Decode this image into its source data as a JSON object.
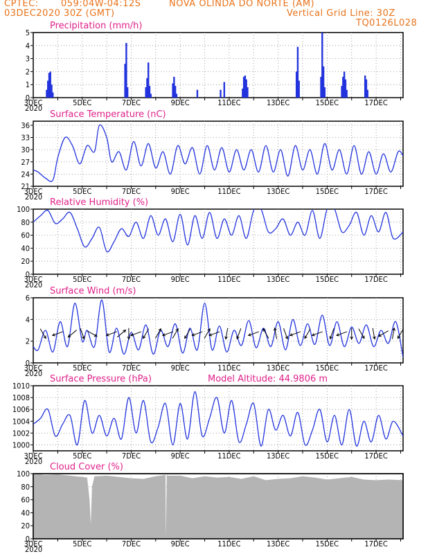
{
  "header": {
    "source": "CPTEC:",
    "coords": "059:04W-04:12S",
    "location": "NOVA OLINDA DO NORTE (AM)",
    "datetime": "03DEC2020 30Z (GMT)",
    "grid_line": "Vertical Grid Line: 30Z",
    "model": "TQ0126L028"
  },
  "x_axis": {
    "start_label": "3DEC",
    "year_label": "2020",
    "day_labels": [
      "3DEC",
      "5DEC",
      "7DEC",
      "9DEC",
      "11DEC",
      "13DEC",
      "15DEC",
      "17DEC"
    ],
    "day_values": [
      3,
      5,
      7,
      9,
      11,
      13,
      15,
      17
    ],
    "range_days": [
      3,
      18.1
    ]
  },
  "colors": {
    "series": "#2233dd",
    "grid": "#888888",
    "title": "#e0208a",
    "header": "#e8731a",
    "cloud": "#b4b4b4",
    "arrow": "#000000"
  },
  "chart_data": [
    {
      "type": "bar",
      "title": "Precipitation (mm/h)",
      "ylim": [
        0,
        5
      ],
      "yticks": [
        0,
        1,
        2,
        3,
        4,
        5
      ],
      "bars": [
        [
          3.55,
          0.6
        ],
        [
          3.6,
          1.3
        ],
        [
          3.65,
          1.9
        ],
        [
          3.7,
          2.0
        ],
        [
          3.75,
          1.0
        ],
        [
          3.8,
          0.4
        ],
        [
          6.75,
          2.6
        ],
        [
          6.8,
          4.2
        ],
        [
          6.85,
          0.8
        ],
        [
          7.6,
          0.8
        ],
        [
          7.65,
          1.5
        ],
        [
          7.7,
          2.7
        ],
        [
          7.75,
          0.9
        ],
        [
          7.8,
          0.3
        ],
        [
          8.7,
          1.1
        ],
        [
          8.75,
          1.6
        ],
        [
          8.8,
          0.9
        ],
        [
          8.85,
          0.3
        ],
        [
          9.7,
          0.6
        ],
        [
          10.65,
          0.6
        ],
        [
          10.8,
          1.2
        ],
        [
          11.55,
          0.7
        ],
        [
          11.6,
          1.6
        ],
        [
          11.65,
          1.7
        ],
        [
          11.7,
          1.4
        ],
        [
          11.75,
          0.8
        ],
        [
          13.75,
          2.0
        ],
        [
          13.8,
          3.9
        ],
        [
          13.85,
          1.3
        ],
        [
          14.75,
          1.6
        ],
        [
          14.8,
          5.0
        ],
        [
          14.85,
          2.4
        ],
        [
          14.9,
          0.8
        ],
        [
          15.6,
          0.9
        ],
        [
          15.65,
          1.6
        ],
        [
          15.7,
          2.0
        ],
        [
          15.75,
          1.4
        ],
        [
          15.8,
          0.6
        ],
        [
          16.55,
          1.7
        ],
        [
          16.6,
          1.4
        ],
        [
          16.65,
          0.6
        ]
      ]
    },
    {
      "type": "line",
      "title": "Surface Temperature (nC)",
      "ylim": [
        21,
        37
      ],
      "yticks": [
        21,
        24,
        27,
        30,
        33,
        36
      ],
      "x": [
        3.0,
        3.2,
        3.5,
        3.8,
        4.0,
        4.3,
        4.6,
        4.9,
        5.2,
        5.5,
        5.7,
        6.0,
        6.2,
        6.5,
        6.8,
        7.1,
        7.4,
        7.7,
        8.0,
        8.3,
        8.6,
        8.9,
        9.2,
        9.5,
        9.8,
        10.1,
        10.4,
        10.7,
        11.0,
        11.3,
        11.6,
        11.9,
        12.2,
        12.5,
        12.8,
        13.1,
        13.4,
        13.7,
        14.0,
        14.3,
        14.6,
        14.9,
        15.2,
        15.5,
        15.8,
        16.1,
        16.4,
        16.7,
        17.0,
        17.3,
        17.6,
        17.9,
        18.1
      ],
      "y": [
        25,
        24.5,
        23,
        22.5,
        28,
        33,
        31,
        26.5,
        31,
        29.5,
        36,
        33,
        27,
        29.5,
        25,
        32,
        26,
        31.5,
        25.5,
        29.5,
        24,
        31,
        26.5,
        30.5,
        24,
        31,
        25,
        30.5,
        24.5,
        30,
        25,
        30,
        24.5,
        31,
        24.5,
        30,
        23.5,
        31,
        25,
        30,
        24,
        31.5,
        25,
        30,
        24,
        31,
        24,
        29.5,
        24,
        29,
        24.5,
        29.5,
        28.5
      ]
    },
    {
      "type": "line",
      "title": "Relative Humidity (%)",
      "ylim": [
        0,
        100
      ],
      "yticks": [
        0,
        20,
        40,
        60,
        80,
        100
      ],
      "x": [
        3.0,
        3.3,
        3.6,
        3.9,
        4.2,
        4.5,
        4.8,
        5.1,
        5.4,
        5.7,
        6.0,
        6.3,
        6.6,
        6.9,
        7.2,
        7.5,
        7.8,
        8.1,
        8.4,
        8.7,
        9.0,
        9.3,
        9.6,
        9.9,
        10.2,
        10.5,
        10.8,
        11.1,
        11.4,
        11.7,
        12.0,
        12.3,
        12.6,
        12.9,
        13.2,
        13.5,
        13.8,
        14.1,
        14.4,
        14.7,
        15.0,
        15.3,
        15.6,
        15.9,
        16.2,
        16.5,
        16.8,
        17.1,
        17.4,
        17.7,
        18.1
      ],
      "y": [
        80,
        90,
        98,
        78,
        85,
        95,
        70,
        42,
        55,
        72,
        35,
        50,
        70,
        58,
        80,
        55,
        90,
        60,
        85,
        50,
        92,
        45,
        90,
        55,
        95,
        55,
        85,
        60,
        90,
        55,
        98,
        100,
        65,
        70,
        85,
        60,
        80,
        60,
        98,
        55,
        100,
        100,
        65,
        75,
        95,
        60,
        90,
        65,
        95,
        55,
        65
      ]
    },
    {
      "type": "line",
      "title": "Surface Wind (m/s)",
      "ylim": [
        0,
        6
      ],
      "yticks": [
        0,
        2,
        4,
        6
      ],
      "x": [
        3.0,
        3.2,
        3.5,
        3.8,
        4.1,
        4.4,
        4.7,
        5.0,
        5.2,
        5.5,
        5.8,
        6.1,
        6.4,
        6.7,
        7.0,
        7.3,
        7.6,
        7.9,
        8.2,
        8.5,
        8.8,
        9.1,
        9.4,
        9.7,
        10.0,
        10.3,
        10.6,
        10.9,
        11.2,
        11.5,
        11.8,
        12.1,
        12.4,
        12.7,
        13.0,
        13.3,
        13.6,
        13.9,
        14.2,
        14.5,
        14.8,
        15.1,
        15.4,
        15.7,
        16.0,
        16.3,
        16.6,
        16.9,
        17.2,
        17.5,
        17.8,
        18.1
      ],
      "y": [
        1.5,
        1.2,
        3.0,
        1.0,
        3.8,
        1.5,
        5.5,
        2.0,
        3.0,
        1.5,
        5.8,
        1.0,
        3.2,
        0.8,
        2.8,
        1.2,
        3.5,
        0.8,
        3.0,
        1.5,
        3.6,
        0.9,
        3.2,
        1.2,
        5.5,
        1.2,
        3.4,
        1.0,
        3.0,
        1.6,
        3.9,
        1.4,
        3.2,
        1.5,
        3.8,
        1.2,
        4.0,
        1.6,
        3.6,
        1.7,
        4.4,
        1.6,
        3.8,
        1.5,
        3.3,
        1.8,
        3.5,
        1.5,
        3.0,
        1.8,
        3.8,
        0.5
      ],
      "arrows": [
        [
          3.4,
          300
        ],
        [
          4.0,
          200
        ],
        [
          4.6,
          220
        ],
        [
          5.0,
          290
        ],
        [
          5.4,
          330
        ],
        [
          6.2,
          200
        ],
        [
          6.6,
          40
        ],
        [
          6.9,
          270
        ],
        [
          7.2,
          200
        ],
        [
          7.6,
          240
        ],
        [
          8.1,
          60
        ],
        [
          8.5,
          200
        ],
        [
          8.8,
          60
        ],
        [
          9.3,
          240
        ],
        [
          9.7,
          200
        ],
        [
          10.1,
          60
        ],
        [
          10.4,
          200
        ],
        [
          10.9,
          260
        ],
        [
          11.4,
          250
        ],
        [
          12.0,
          200
        ],
        [
          12.5,
          120
        ],
        [
          12.9,
          100
        ],
        [
          13.3,
          290
        ],
        [
          13.7,
          200
        ],
        [
          14.2,
          240
        ],
        [
          14.6,
          200
        ],
        [
          15.2,
          250
        ],
        [
          15.6,
          200
        ],
        [
          16.0,
          270
        ],
        [
          16.4,
          300
        ],
        [
          16.9,
          280
        ],
        [
          17.3,
          210
        ],
        [
          17.7,
          80
        ],
        [
          18.0,
          240
        ]
      ]
    },
    {
      "type": "line",
      "title": "Surface Pressure (hPa)",
      "annotation": "Model Altitude: 44.9806 m",
      "ylim": [
        999,
        1010
      ],
      "yticks": [
        1000,
        1002,
        1004,
        1006,
        1008,
        1010
      ],
      "x": [
        3.0,
        3.3,
        3.6,
        3.9,
        4.2,
        4.5,
        4.8,
        5.1,
        5.4,
        5.7,
        6.0,
        6.3,
        6.6,
        6.9,
        7.2,
        7.5,
        7.8,
        8.1,
        8.4,
        8.7,
        9.0,
        9.3,
        9.6,
        9.9,
        10.2,
        10.5,
        10.8,
        11.1,
        11.4,
        11.7,
        12.0,
        12.3,
        12.6,
        12.9,
        13.2,
        13.5,
        13.8,
        14.1,
        14.4,
        14.7,
        15.0,
        15.3,
        15.6,
        15.9,
        16.2,
        16.5,
        16.8,
        17.1,
        17.4,
        17.7,
        18.1
      ],
      "y": [
        1003.5,
        1004.5,
        1006,
        1001.5,
        1003.5,
        1005,
        1000,
        1007.5,
        1002,
        1005,
        1001.5,
        1004.5,
        1001,
        1008,
        1002,
        1007.5,
        1000.5,
        1003,
        1007,
        1000,
        1007,
        1001,
        1009,
        1001.5,
        1004.5,
        1008,
        1002,
        1007.5,
        1000.5,
        1003.5,
        1007,
        999.8,
        1006,
        1002.5,
        1005,
        1001.5,
        1005.5,
        1000,
        1002.5,
        1006,
        1000.5,
        1005,
        1000,
        1006,
        999.8,
        1004,
        1000.5,
        1005,
        1001,
        1004,
        1001.5
      ]
    },
    {
      "type": "area",
      "title": "Cloud Cover (%)",
      "ylim": [
        0,
        100
      ],
      "yticks": [
        0,
        20,
        40,
        60,
        80,
        100
      ],
      "x": [
        3.0,
        3.5,
        4.0,
        4.5,
        5.0,
        5.2,
        5.3,
        5.35,
        5.4,
        5.5,
        6.0,
        6.5,
        7.0,
        7.5,
        8.0,
        8.4,
        8.42,
        8.45,
        8.5,
        9.0,
        9.5,
        10.0,
        10.5,
        11.0,
        11.5,
        12.0,
        12.5,
        13.0,
        13.5,
        14.0,
        14.5,
        15.0,
        15.5,
        16.0,
        16.5,
        17.0,
        17.5,
        18.1
      ],
      "y": [
        100,
        98,
        99,
        97,
        95,
        94,
        60,
        22,
        80,
        96,
        97,
        95,
        93,
        92,
        96,
        98,
        0,
        98,
        97,
        97,
        93,
        96,
        94,
        95,
        92,
        96,
        90,
        92,
        93,
        96,
        94,
        91,
        93,
        95,
        91,
        90,
        91,
        90
      ]
    }
  ]
}
